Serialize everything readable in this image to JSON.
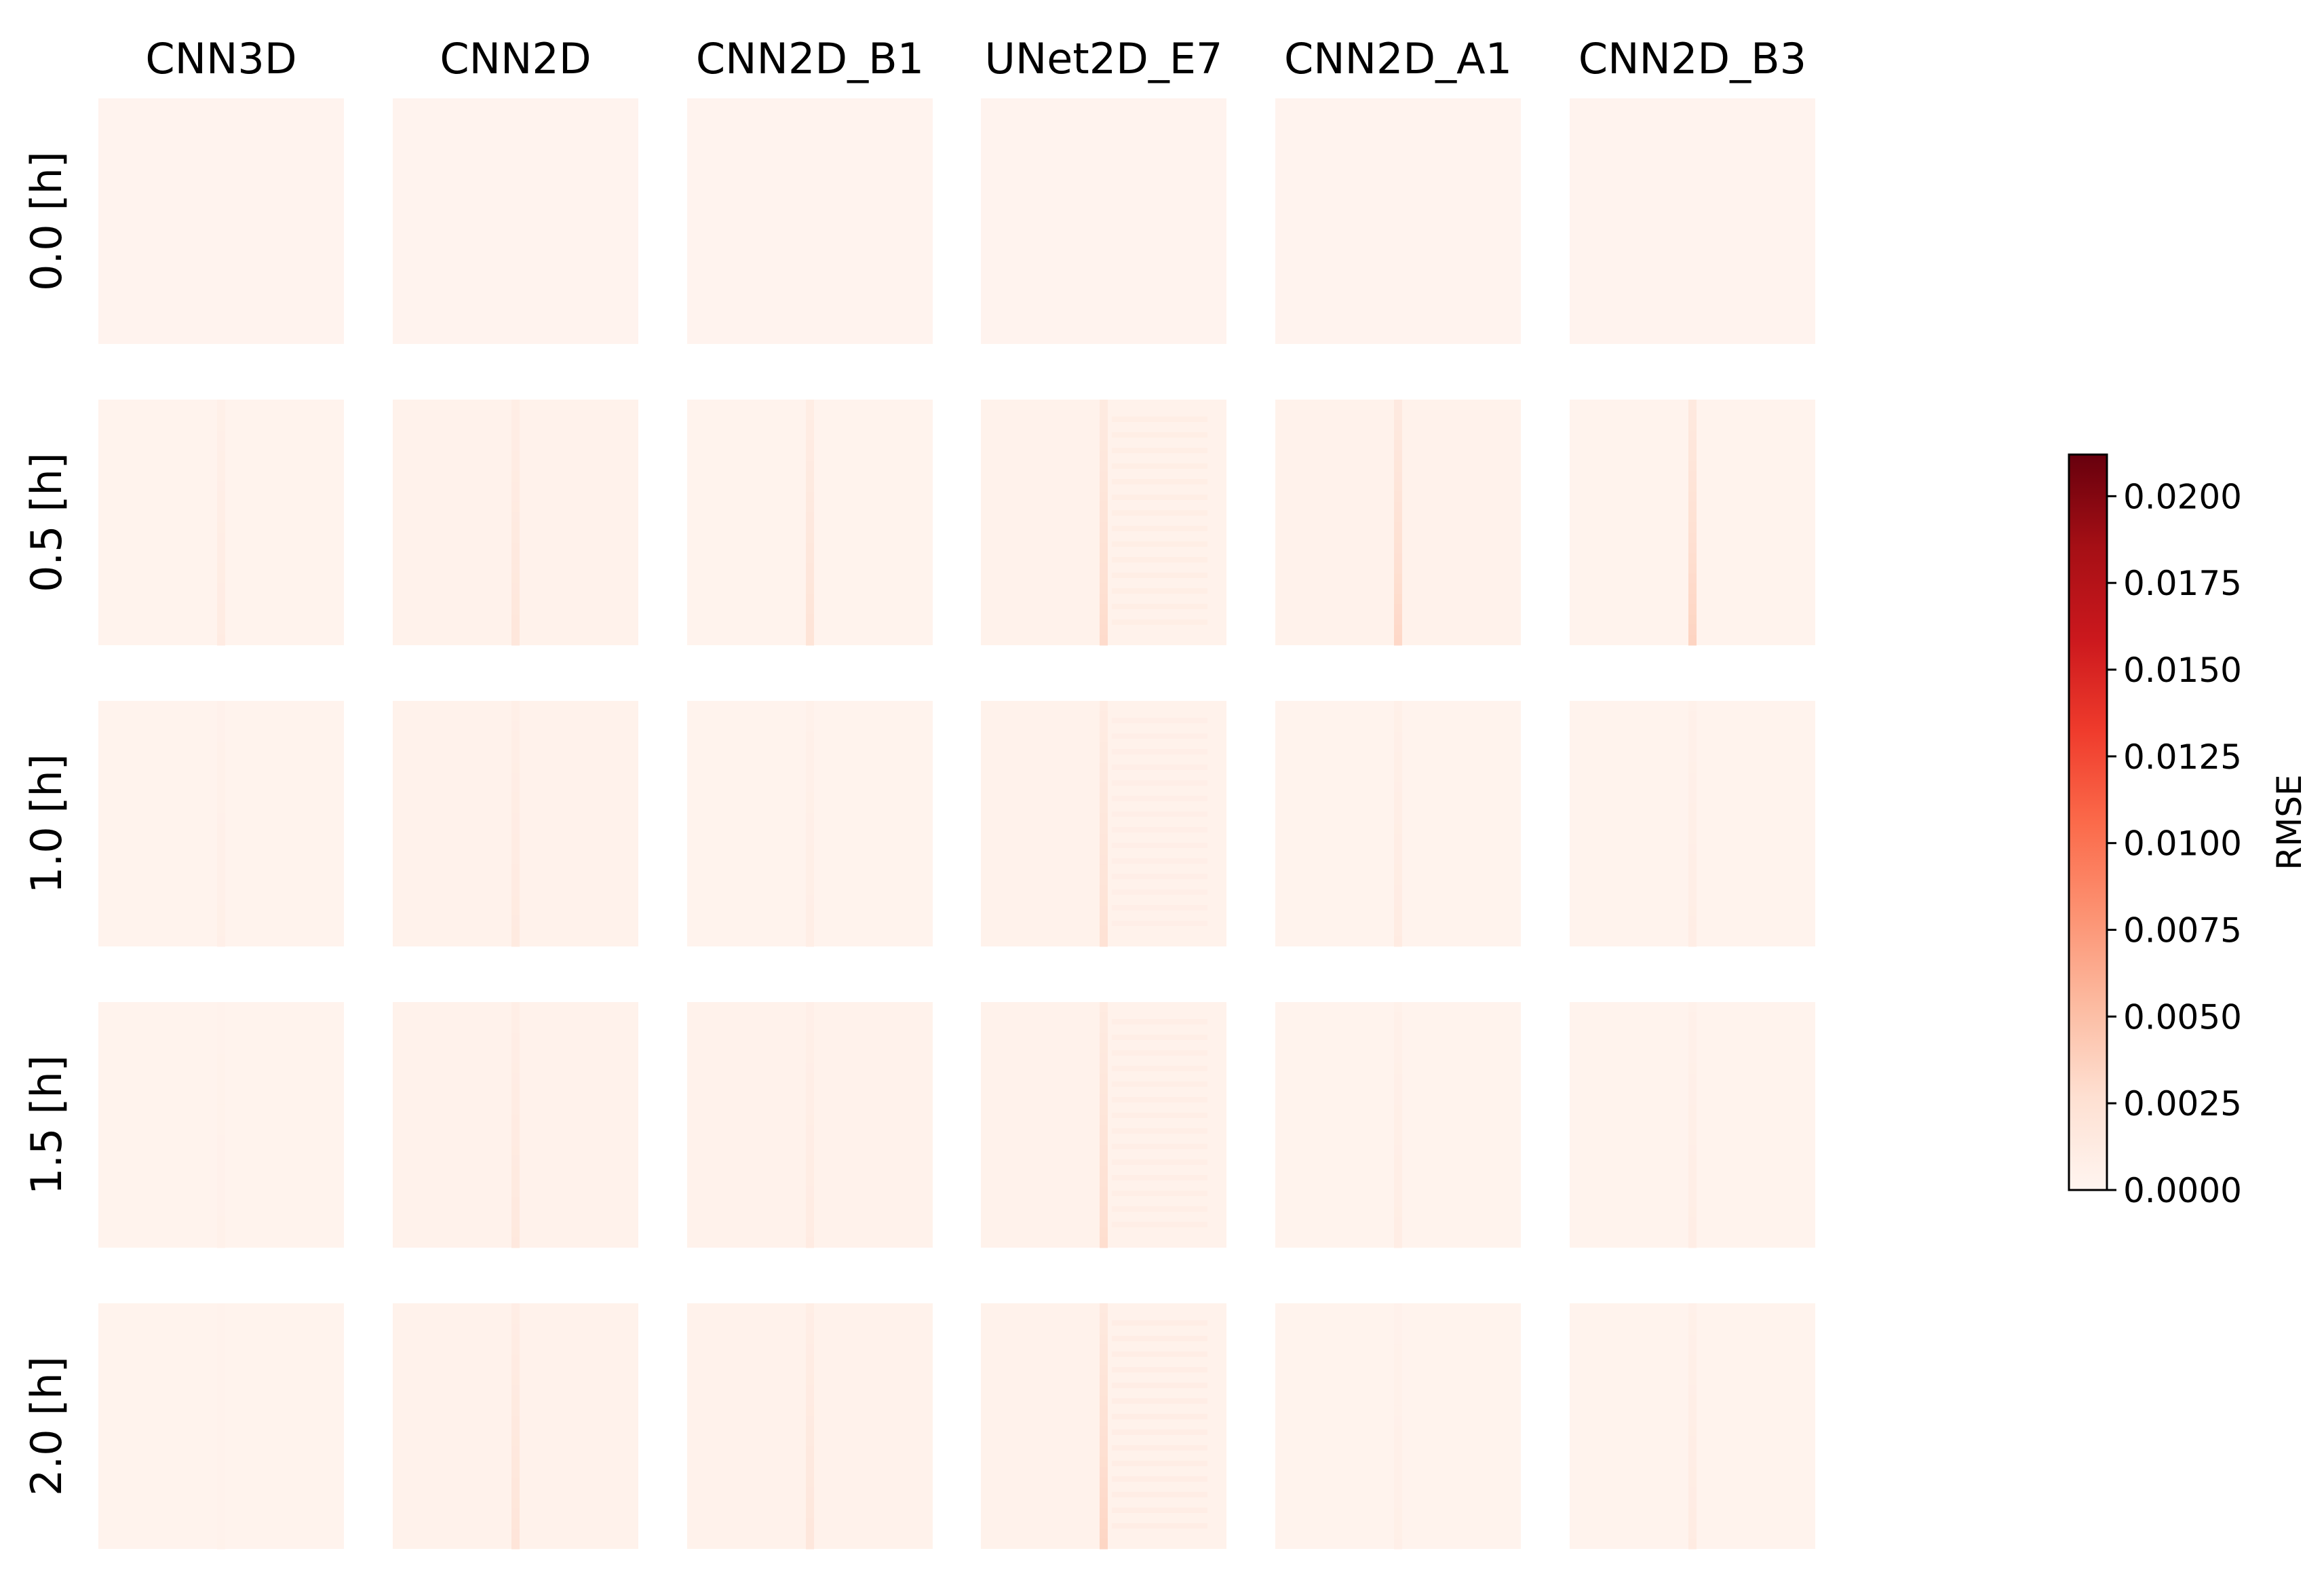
{
  "chart_data": {
    "type": "heatmap",
    "title": "",
    "columns": [
      "CNN3D",
      "CNN2D",
      "CNN2D_B1",
      "UNet2D_E7",
      "CNN2D_A1",
      "CNN2D_B3"
    ],
    "rows": [
      "0.0 [h]",
      "0.5 [h]",
      "1.0 [h]",
      "1.5 [h]",
      "2.0 [h]"
    ],
    "colormap": "Reds",
    "colors": {
      "low": "#fff5f0",
      "high": "#67000d"
    },
    "colorbar": {
      "label": "RMSE",
      "min": 0.0,
      "max": 0.0212,
      "ticks": [
        0.0,
        0.0025,
        0.005,
        0.0075,
        0.01,
        0.0125,
        0.015,
        0.0175,
        0.02
      ],
      "tick_labels": [
        "0.0000",
        "0.0025",
        "0.0050",
        "0.0075",
        "0.0100",
        "0.0125",
        "0.0150",
        "0.0175",
        "0.0200"
      ]
    },
    "panels": {
      "background_rmse": [
        [
          0.0002,
          0.0002,
          0.0002,
          0.0002,
          0.0002,
          0.0002
        ],
        [
          0.0003,
          0.0004,
          0.0003,
          0.0004,
          0.0004,
          0.0003
        ],
        [
          0.0003,
          0.0004,
          0.0003,
          0.0004,
          0.0003,
          0.0003
        ],
        [
          0.0003,
          0.0004,
          0.0004,
          0.0004,
          0.0003,
          0.0003
        ],
        [
          0.0003,
          0.0004,
          0.0004,
          0.0004,
          0.0003,
          0.0003
        ]
      ],
      "stripe_rmse_peak": [
        [
          0.0,
          0.0,
          0.0,
          0.0,
          0.0,
          0.0
        ],
        [
          0.0012,
          0.0018,
          0.0022,
          0.003,
          0.0032,
          0.0035
        ],
        [
          0.0007,
          0.0014,
          0.0009,
          0.0024,
          0.0012,
          0.001
        ],
        [
          0.0005,
          0.0016,
          0.0012,
          0.0028,
          0.001,
          0.001
        ],
        [
          0.0004,
          0.002,
          0.0018,
          0.0034,
          0.0007,
          0.0012
        ]
      ]
    }
  }
}
